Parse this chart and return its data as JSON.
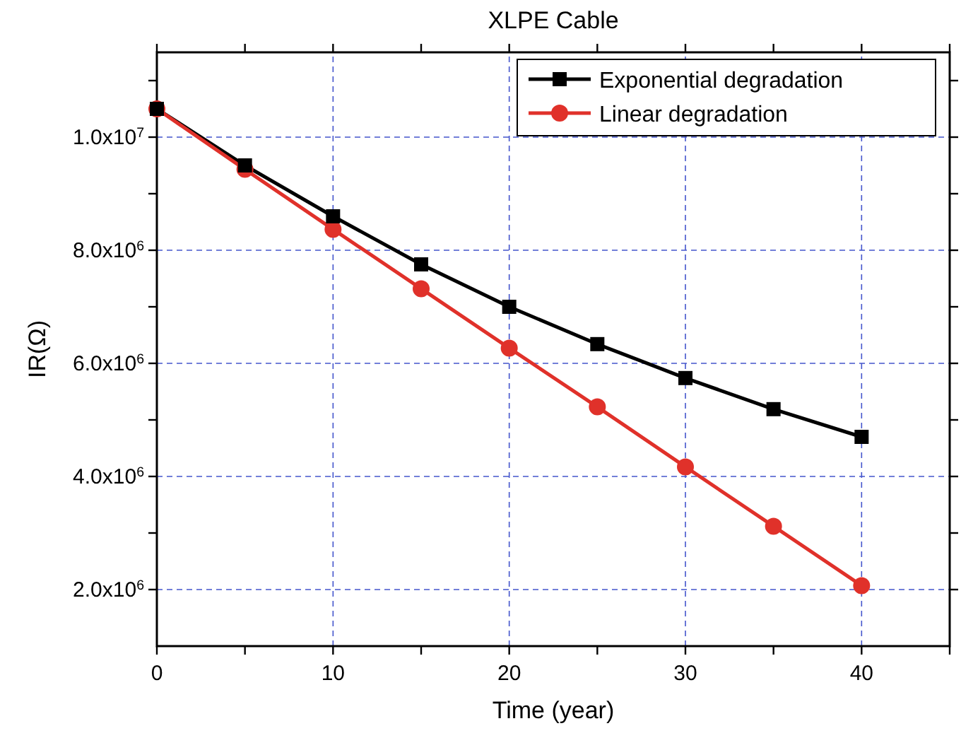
{
  "chart_data": {
    "type": "line",
    "title": "XLPE Cable",
    "xlabel": "Time (year)",
    "ylabel": "IR(Ω)",
    "x": [
      0,
      5,
      10,
      15,
      20,
      25,
      30,
      35,
      40
    ],
    "series": [
      {
        "name": "Exponential degradation",
        "color": "#000000",
        "marker": "square",
        "values": [
          10500000,
          9500000,
          8600000,
          7750000,
          7000000,
          6340000,
          5740000,
          5190000,
          4700000
        ]
      },
      {
        "name": "Linear degradation",
        "color": "#e0312a",
        "marker": "circle",
        "values": [
          10500000,
          9430000,
          8370000,
          7320000,
          6270000,
          5230000,
          4170000,
          3120000,
          2070000
        ]
      }
    ],
    "xlim": [
      0,
      45
    ],
    "xticks": [
      0,
      {
        "value": 5,
        "label": null
      },
      10,
      {
        "value": 15,
        "label": null
      },
      20,
      {
        "value": 25,
        "label": null
      },
      30,
      {
        "value": 35,
        "label": null
      },
      40,
      {
        "value": 45,
        "label": null
      }
    ],
    "ylim": [
      1000000,
      11500000
    ],
    "yticks": [
      {
        "value": 2000000,
        "label": "2.0x10$^{6}$"
      },
      {
        "value": 3000000,
        "label": null
      },
      {
        "value": 4000000,
        "label": "4.0x10$^{6}$"
      },
      {
        "value": 5000000,
        "label": null
      },
      {
        "value": 6000000,
        "label": "6.0x10$^{6}$"
      },
      {
        "value": 7000000,
        "label": null
      },
      {
        "value": 8000000,
        "label": "8.0x10$^{6}$"
      },
      {
        "value": 9000000,
        "label": null
      },
      {
        "value": 10000000,
        "label": "1.0x10$^{7}$"
      },
      {
        "value": 11000000,
        "label": null
      }
    ],
    "grid": true,
    "legend": "top right",
    "line_style": "solid"
  }
}
